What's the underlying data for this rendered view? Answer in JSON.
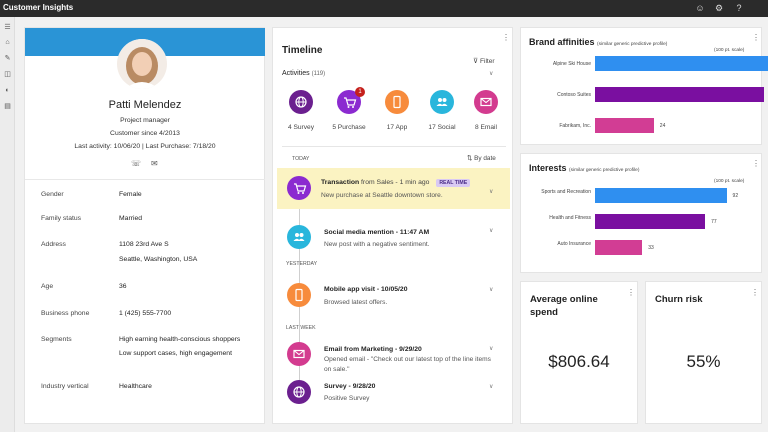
{
  "app": {
    "title": "Customer Insights"
  },
  "topbar": {
    "icons": [
      "smiley-icon",
      "gear-icon",
      "help-icon"
    ],
    "help_glyph": "?"
  },
  "sidebar": {
    "icons": [
      "hamburger-icon",
      "home-icon",
      "pin-icon",
      "segments-icon",
      "measures-icon",
      "data-icon"
    ]
  },
  "contact": {
    "name": "Patti Melendez",
    "role": "Project manager",
    "customer_since": "Customer since 4/2013",
    "last_activity": "Last activity: 10/06/20 | Last Purchase: 7/18/20",
    "fields": [
      {
        "label": "Gender",
        "value": "Female"
      },
      {
        "label": "Family status",
        "value": "Married"
      },
      {
        "label": "Address",
        "value": "1108 23rd Ave S",
        "value2": "Seattle, Washington, USA"
      },
      {
        "label": "Age",
        "value": "36"
      },
      {
        "label": "Business phone",
        "value": "1 (425) 555-7700"
      },
      {
        "label": "Segments",
        "value": "High earning health-conscious shoppers",
        "value2": "Low support cases, high engagement"
      },
      {
        "label": "Industry vertical",
        "value": "Healthcare"
      }
    ]
  },
  "timeline": {
    "title": "Timeline",
    "filter_label": "Filter",
    "activities_label": "Activities",
    "activities_count": "(119)",
    "categories": [
      {
        "label": "4 Survey",
        "color": "#6b1f8f"
      },
      {
        "label": "5 Purchase",
        "color": "#8b2ad0",
        "badge": "1"
      },
      {
        "label": "17 App",
        "color": "#f78b3c"
      },
      {
        "label": "17 Social",
        "color": "#29b6dc"
      },
      {
        "label": "8 Email",
        "color": "#d33b8f"
      }
    ],
    "today_label": "TODAY",
    "sort_label": "By date",
    "yesterday_label": "YESTERDAY",
    "lastweek_label": "LAST WEEK",
    "items": [
      {
        "title": "Transaction",
        "from": "from Sales - 1 min ago",
        "tag": "REAL TIME",
        "desc": "New purchase at Seattle downtown store.",
        "color": "#8b2ad0"
      },
      {
        "title": "Social media mention - 11:47 AM",
        "desc": "New post with a negative sentiment.",
        "color": "#29b6dc"
      },
      {
        "title": "Mobile app visit - 10/05/20",
        "desc": "Browsed latest offers.",
        "color": "#f78b3c"
      },
      {
        "title": "Email from Marketing - 9/29/20",
        "desc": "Opened email - \"Check out our latest top of the line items on sale.\"",
        "color": "#d33b8f"
      },
      {
        "title": "Survey - 9/28/20",
        "desc": "Positive Survey",
        "color": "#6b1f8f"
      }
    ]
  },
  "brand": {
    "title": "Brand affinities",
    "subtitle": "(similar generic predictive profile)",
    "scale_label": "(100 pt. scale)",
    "chart_data": {
      "type": "bar",
      "categories": [
        "Alpine Ski House",
        "Contoso Suites",
        "Fabrikam, Inc."
      ],
      "values": [
        81,
        69,
        24
      ],
      "colors": [
        "#2f8ff0",
        "#7a0fa0",
        "#d23d94"
      ],
      "xlim": [
        0,
        100
      ],
      "orientation": "horizontal"
    }
  },
  "interests": {
    "title": "Interests",
    "subtitle": "(similar generic predictive profile)",
    "scale_label": "(100 pt. scale)",
    "chart_data": {
      "type": "bar",
      "categories": [
        "Sports and Recreation",
        "Health and Fitness",
        "Auto Insurance"
      ],
      "values": [
        92,
        77,
        33
      ],
      "colors": [
        "#2f8ff0",
        "#7a0fa0",
        "#d23d94"
      ],
      "xlim": [
        0,
        100
      ],
      "orientation": "horizontal"
    }
  },
  "kpis": {
    "spend": {
      "title": "Average online spend",
      "value": "$806.64"
    },
    "churn": {
      "title": "Churn risk",
      "value": "55%"
    }
  }
}
